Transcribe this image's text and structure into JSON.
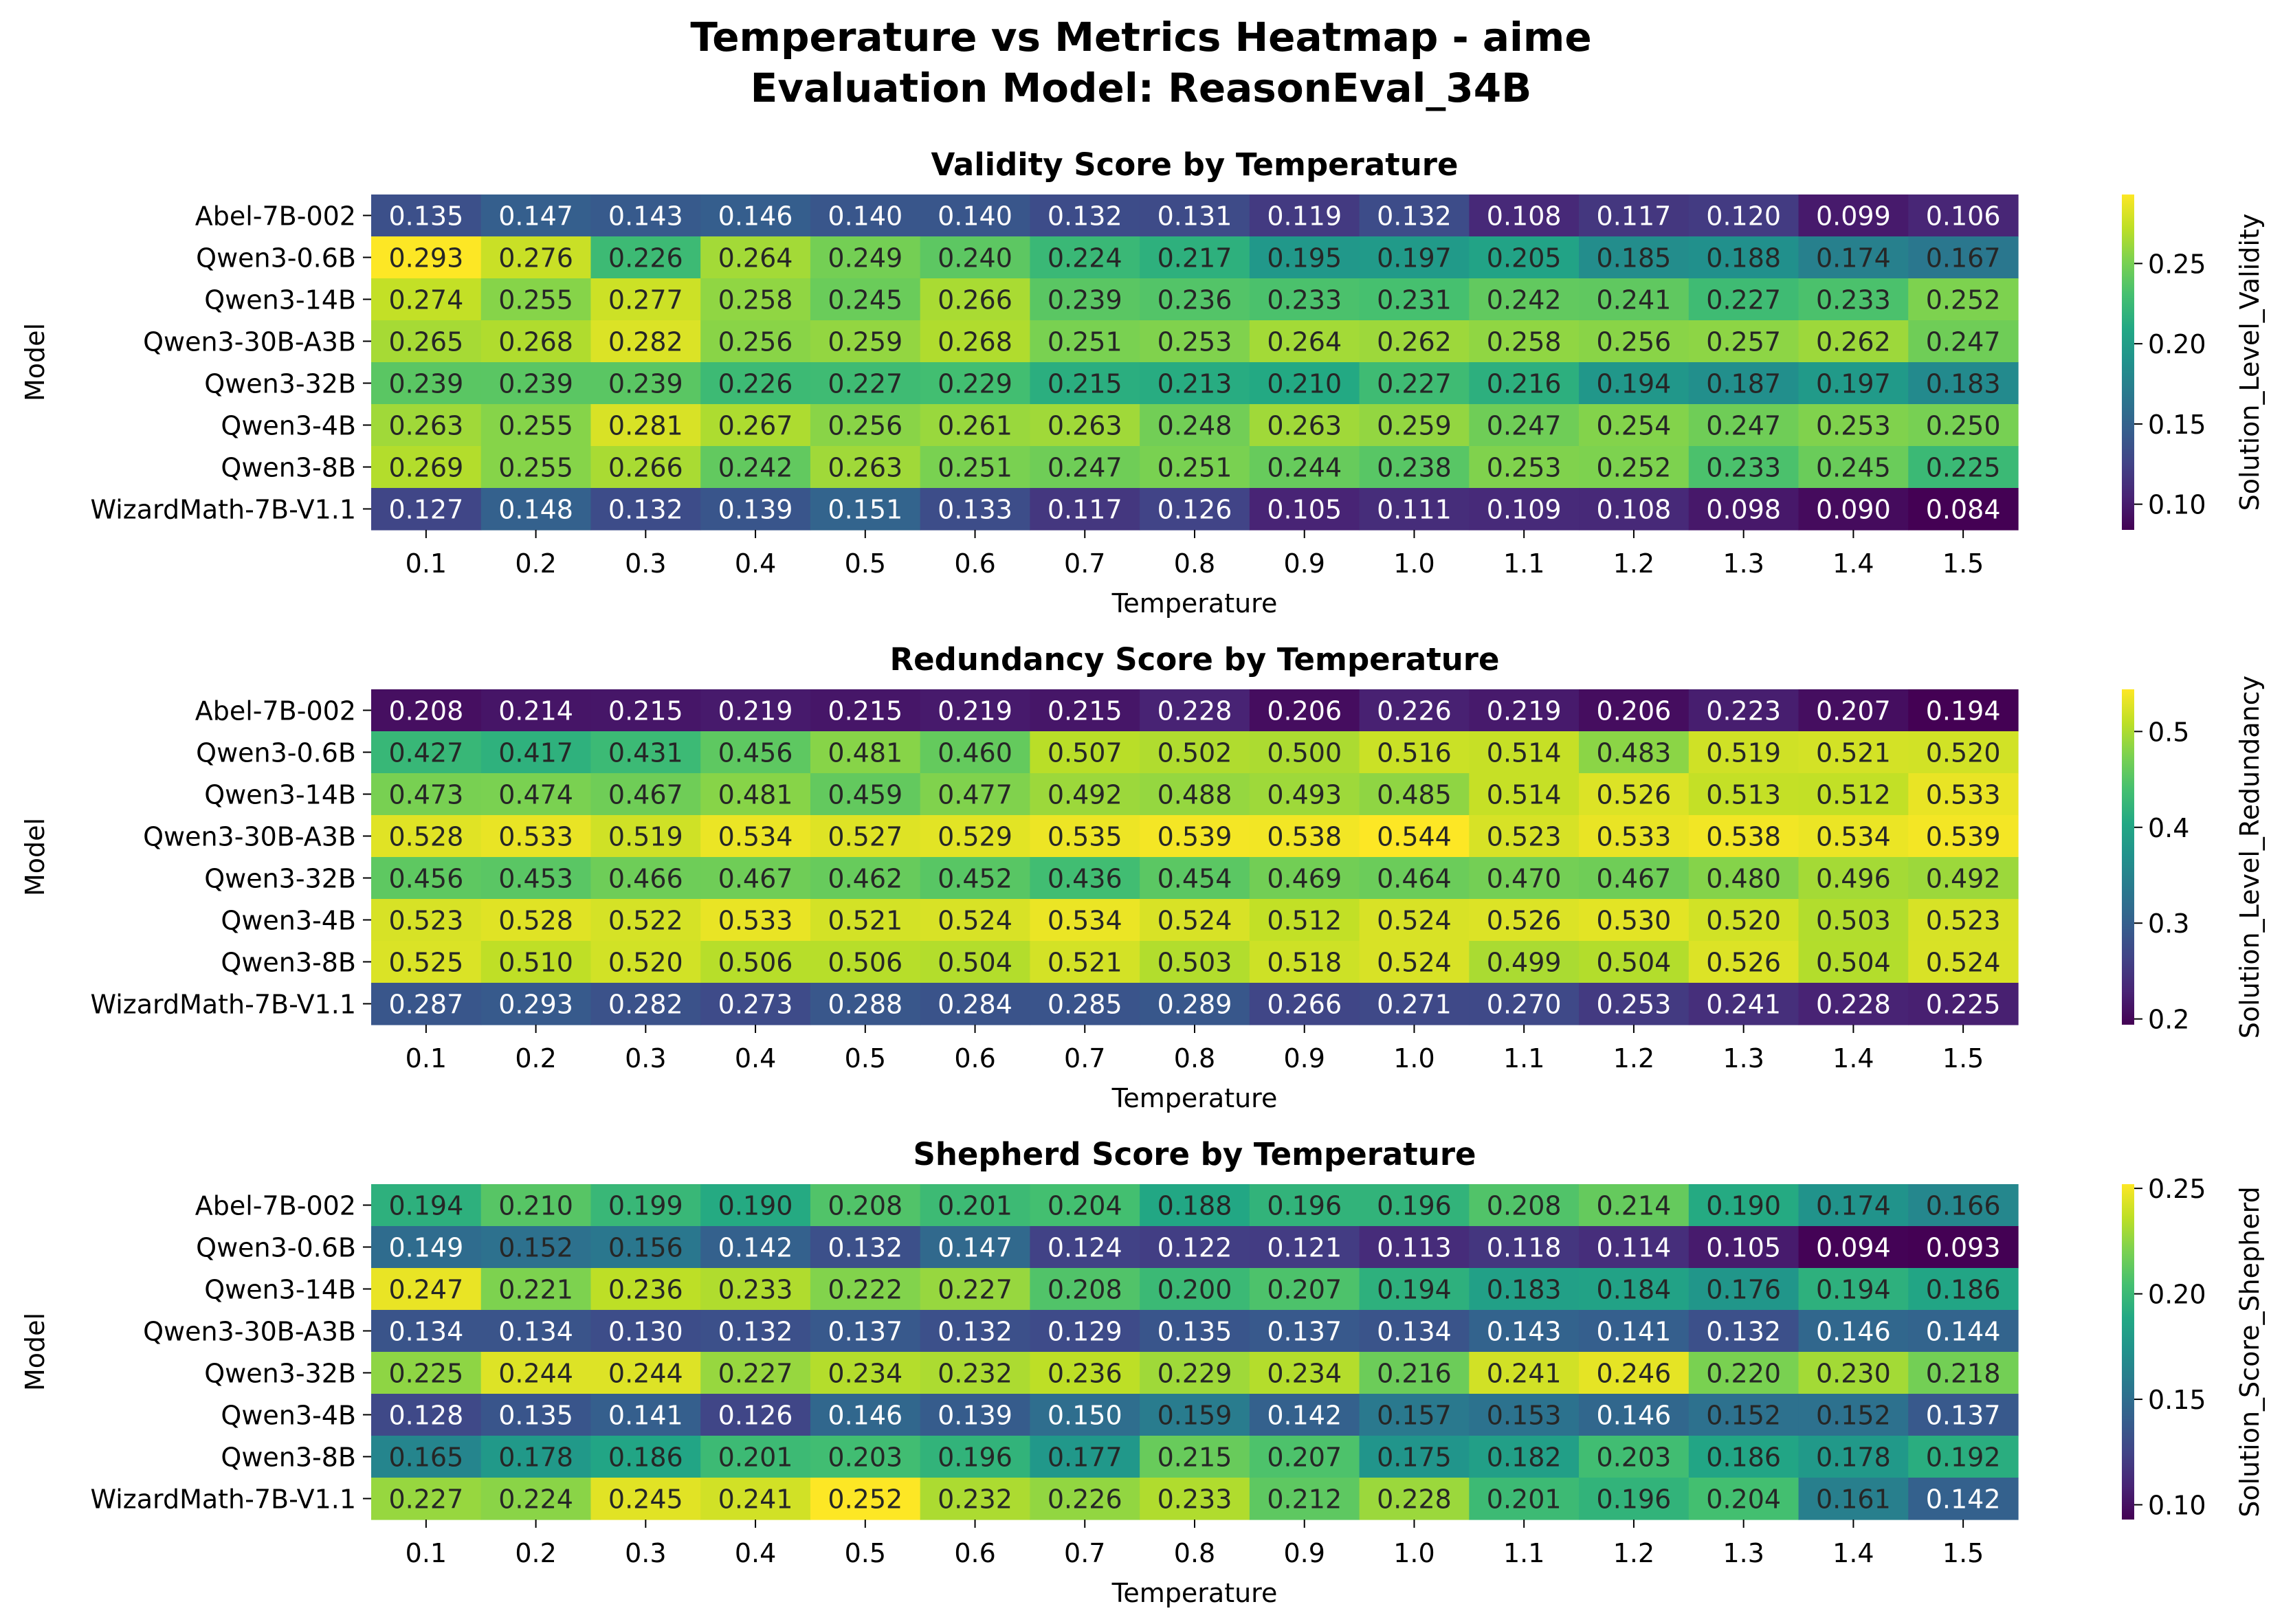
{
  "figure": {
    "title_line1": "Temperature vs Metrics Heatmap - aime",
    "title_line2": "Evaluation Model: ReasonEval_34B"
  },
  "chart_data": [
    {
      "type": "heatmap",
      "title": "Validity Score by Temperature",
      "xlabel": "Temperature",
      "ylabel": "Model",
      "colorbar_label": "Solution_Level_Validity",
      "colorbar_ticks": [
        "0.10",
        "0.15",
        "0.20",
        "0.25"
      ],
      "x": [
        "0.1",
        "0.2",
        "0.3",
        "0.4",
        "0.5",
        "0.6",
        "0.7",
        "0.8",
        "0.9",
        "1.0",
        "1.1",
        "1.2",
        "1.3",
        "1.4",
        "1.5"
      ],
      "y": [
        "Abel-7B-002",
        "Qwen3-0.6B",
        "Qwen3-14B",
        "Qwen3-30B-A3B",
        "Qwen3-32B",
        "Qwen3-4B",
        "Qwen3-8B",
        "WizardMath-7B-V1.1"
      ],
      "vmin": 0.084,
      "vmax": 0.293,
      "colormap": "viridis",
      "values": [
        [
          0.135,
          0.147,
          0.143,
          0.146,
          0.14,
          0.14,
          0.132,
          0.131,
          0.119,
          0.132,
          0.108,
          0.117,
          0.12,
          0.099,
          0.106
        ],
        [
          0.293,
          0.276,
          0.226,
          0.264,
          0.249,
          0.24,
          0.224,
          0.217,
          0.195,
          0.197,
          0.205,
          0.185,
          0.188,
          0.174,
          0.167
        ],
        [
          0.274,
          0.255,
          0.277,
          0.258,
          0.245,
          0.266,
          0.239,
          0.236,
          0.233,
          0.231,
          0.242,
          0.241,
          0.227,
          0.233,
          0.252
        ],
        [
          0.265,
          0.268,
          0.282,
          0.256,
          0.259,
          0.268,
          0.251,
          0.253,
          0.264,
          0.262,
          0.258,
          0.256,
          0.257,
          0.262,
          0.247
        ],
        [
          0.239,
          0.239,
          0.239,
          0.226,
          0.227,
          0.229,
          0.215,
          0.213,
          0.21,
          0.227,
          0.216,
          0.194,
          0.187,
          0.197,
          0.183
        ],
        [
          0.263,
          0.255,
          0.281,
          0.267,
          0.256,
          0.261,
          0.263,
          0.248,
          0.263,
          0.259,
          0.247,
          0.254,
          0.247,
          0.253,
          0.25
        ],
        [
          0.269,
          0.255,
          0.266,
          0.242,
          0.263,
          0.251,
          0.247,
          0.251,
          0.244,
          0.238,
          0.253,
          0.252,
          0.233,
          0.245,
          0.225
        ],
        [
          0.127,
          0.148,
          0.132,
          0.139,
          0.151,
          0.133,
          0.117,
          0.126,
          0.105,
          0.111,
          0.109,
          0.108,
          0.098,
          0.09,
          0.084
        ]
      ]
    },
    {
      "type": "heatmap",
      "title": "Redundancy Score by Temperature",
      "xlabel": "Temperature",
      "ylabel": "Model",
      "colorbar_label": "Solution_Level_Redundancy",
      "colorbar_ticks": [
        "0.2",
        "0.3",
        "0.4",
        "0.5"
      ],
      "x": [
        "0.1",
        "0.2",
        "0.3",
        "0.4",
        "0.5",
        "0.6",
        "0.7",
        "0.8",
        "0.9",
        "1.0",
        "1.1",
        "1.2",
        "1.3",
        "1.4",
        "1.5"
      ],
      "y": [
        "Abel-7B-002",
        "Qwen3-0.6B",
        "Qwen3-14B",
        "Qwen3-30B-A3B",
        "Qwen3-32B",
        "Qwen3-4B",
        "Qwen3-8B",
        "WizardMath-7B-V1.1"
      ],
      "vmin": 0.194,
      "vmax": 0.544,
      "colormap": "viridis",
      "values": [
        [
          0.208,
          0.214,
          0.215,
          0.219,
          0.215,
          0.219,
          0.215,
          0.228,
          0.206,
          0.226,
          0.219,
          0.206,
          0.223,
          0.207,
          0.194
        ],
        [
          0.427,
          0.417,
          0.431,
          0.456,
          0.481,
          0.46,
          0.507,
          0.502,
          0.5,
          0.516,
          0.514,
          0.483,
          0.519,
          0.521,
          0.52
        ],
        [
          0.473,
          0.474,
          0.467,
          0.481,
          0.459,
          0.477,
          0.492,
          0.488,
          0.493,
          0.485,
          0.514,
          0.526,
          0.513,
          0.512,
          0.533
        ],
        [
          0.528,
          0.533,
          0.519,
          0.534,
          0.527,
          0.529,
          0.535,
          0.539,
          0.538,
          0.544,
          0.523,
          0.533,
          0.538,
          0.534,
          0.539
        ],
        [
          0.456,
          0.453,
          0.466,
          0.467,
          0.462,
          0.452,
          0.436,
          0.454,
          0.469,
          0.464,
          0.47,
          0.467,
          0.48,
          0.496,
          0.492
        ],
        [
          0.523,
          0.528,
          0.522,
          0.533,
          0.521,
          0.524,
          0.534,
          0.524,
          0.512,
          0.524,
          0.526,
          0.53,
          0.52,
          0.503,
          0.523
        ],
        [
          0.525,
          0.51,
          0.52,
          0.506,
          0.506,
          0.504,
          0.521,
          0.503,
          0.518,
          0.524,
          0.499,
          0.504,
          0.526,
          0.504,
          0.524
        ],
        [
          0.287,
          0.293,
          0.282,
          0.273,
          0.288,
          0.284,
          0.285,
          0.289,
          0.266,
          0.271,
          0.27,
          0.253,
          0.241,
          0.228,
          0.225
        ]
      ]
    },
    {
      "type": "heatmap",
      "title": "Shepherd Score by Temperature",
      "xlabel": "Temperature",
      "ylabel": "Model",
      "colorbar_label": "Solution_Score_Shepherd",
      "colorbar_ticks": [
        "0.10",
        "0.15",
        "0.20",
        "0.25"
      ],
      "x": [
        "0.1",
        "0.2",
        "0.3",
        "0.4",
        "0.5",
        "0.6",
        "0.7",
        "0.8",
        "0.9",
        "1.0",
        "1.1",
        "1.2",
        "1.3",
        "1.4",
        "1.5"
      ],
      "y": [
        "Abel-7B-002",
        "Qwen3-0.6B",
        "Qwen3-14B",
        "Qwen3-30B-A3B",
        "Qwen3-32B",
        "Qwen3-4B",
        "Qwen3-8B",
        "WizardMath-7B-V1.1"
      ],
      "vmin": 0.093,
      "vmax": 0.252,
      "colormap": "viridis",
      "values": [
        [
          0.194,
          0.21,
          0.199,
          0.19,
          0.208,
          0.201,
          0.204,
          0.188,
          0.196,
          0.196,
          0.208,
          0.214,
          0.19,
          0.174,
          0.166
        ],
        [
          0.149,
          0.152,
          0.156,
          0.142,
          0.132,
          0.147,
          0.124,
          0.122,
          0.121,
          0.113,
          0.118,
          0.114,
          0.105,
          0.094,
          0.093
        ],
        [
          0.247,
          0.221,
          0.236,
          0.233,
          0.222,
          0.227,
          0.208,
          0.2,
          0.207,
          0.194,
          0.183,
          0.184,
          0.176,
          0.194,
          0.186
        ],
        [
          0.134,
          0.134,
          0.13,
          0.132,
          0.137,
          0.132,
          0.129,
          0.135,
          0.137,
          0.134,
          0.143,
          0.141,
          0.132,
          0.146,
          0.144
        ],
        [
          0.225,
          0.244,
          0.244,
          0.227,
          0.234,
          0.232,
          0.236,
          0.229,
          0.234,
          0.216,
          0.241,
          0.246,
          0.22,
          0.23,
          0.218
        ],
        [
          0.128,
          0.135,
          0.141,
          0.126,
          0.146,
          0.139,
          0.15,
          0.159,
          0.142,
          0.157,
          0.153,
          0.146,
          0.152,
          0.152,
          0.137
        ],
        [
          0.165,
          0.178,
          0.186,
          0.201,
          0.203,
          0.196,
          0.177,
          0.215,
          0.207,
          0.175,
          0.182,
          0.203,
          0.186,
          0.178,
          0.192
        ],
        [
          0.227,
          0.224,
          0.245,
          0.241,
          0.252,
          0.232,
          0.226,
          0.233,
          0.212,
          0.228,
          0.201,
          0.196,
          0.204,
          0.161,
          0.142
        ]
      ]
    }
  ]
}
